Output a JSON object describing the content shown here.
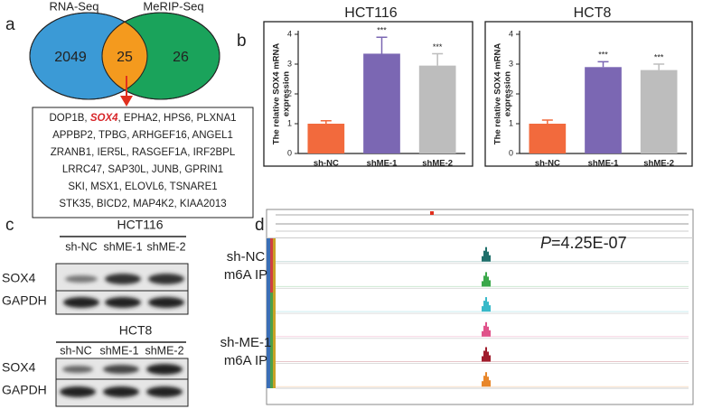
{
  "panel_labels": [
    "a",
    "b",
    "c",
    "d"
  ],
  "venn": {
    "sets": [
      "RNA-Seq",
      "MeRIP-Seq"
    ],
    "left_only": "2049",
    "overlap": "25",
    "right_only": "26"
  },
  "gene_list": {
    "lines": [
      [
        "DOP1B, ",
        "SOX4",
        ", EPHA2, HPS6, PLXNA1"
      ],
      [
        "APPBP2, TPBG, ARHGEF16, ANGEL1"
      ],
      [
        "ZRANB1, IER5L, RASGEF1A, IRF2BPL"
      ],
      [
        "LRRC47, SAP30L, JUNB, GPRIN1"
      ],
      [
        "SKI, MSX1, ELOVL6, TSNARE1"
      ],
      [
        "STK35, BICD2, MAP4K2, KIAA2013"
      ]
    ]
  },
  "chart_data": [
    {
      "type": "bar",
      "title": "HCT116",
      "y_label": [
        "The relative SOX4 mRNA",
        "expression"
      ],
      "categories": [
        "sh-NC",
        "shME-1",
        "shME-2"
      ],
      "values": [
        1.0,
        3.35,
        2.95
      ],
      "errors": [
        0.1,
        0.55,
        0.4
      ],
      "significance": [
        null,
        "***",
        "***"
      ],
      "colors": [
        "#f26a3d",
        "#7b67b3",
        "#bdbdbd"
      ],
      "ylim": [
        0,
        4
      ],
      "yticks": [
        0,
        1,
        2,
        3,
        4
      ]
    },
    {
      "type": "bar",
      "title": "HCT8",
      "y_label": [
        "The relative SOX4 mRNA",
        "expression"
      ],
      "categories": [
        "sh-NC",
        "shME-1",
        "shME-2"
      ],
      "values": [
        1.0,
        2.9,
        2.8
      ],
      "errors": [
        0.12,
        0.18,
        0.2
      ],
      "significance": [
        null,
        "***",
        "***"
      ],
      "colors": [
        "#f26a3d",
        "#7b67b3",
        "#bdbdbd"
      ],
      "ylim": [
        0,
        4
      ],
      "yticks": [
        0,
        1,
        2,
        3,
        4
      ]
    }
  ],
  "western_blot": [
    {
      "cell_line": "HCT116",
      "lanes": [
        "sh-NC",
        "shME-1",
        "shME-2"
      ],
      "rows": [
        "SOX4",
        "GAPDH"
      ]
    },
    {
      "cell_line": "HCT8",
      "lanes": [
        "sh-NC",
        "shME-1",
        "shME-2"
      ],
      "rows": [
        "SOX4",
        "GAPDH"
      ]
    }
  ],
  "igv": {
    "groups": [
      [
        "sh-NC",
        "m6A IP"
      ],
      [
        "sh-ME-1",
        "m6A IP"
      ]
    ],
    "p_value": {
      "symbol": "P",
      "text": "=4.25E-07"
    }
  }
}
